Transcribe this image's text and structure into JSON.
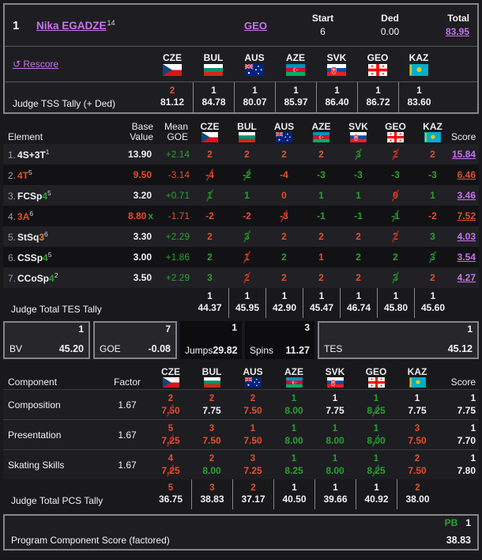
{
  "header": {
    "rank": "1",
    "name": "Nika EGADZE",
    "name_sup": "14",
    "nation": "GEO",
    "start_label": "Start",
    "start_value": "6",
    "ded_label": "Ded",
    "ded_value": "0.00",
    "total_label": "Total",
    "total_value": "83.95"
  },
  "rescore_label": "Rescore",
  "judges": [
    {
      "code": "CZE"
    },
    {
      "code": "BUL"
    },
    {
      "code": "AUS"
    },
    {
      "code": "AZE"
    },
    {
      "code": "SVK"
    },
    {
      "code": "GEO"
    },
    {
      "code": "KAZ"
    }
  ],
  "tss_tally": {
    "label": "Judge TSS Tally (+ Ded)",
    "cells": [
      {
        "rank": "2",
        "rc": "red",
        "value": "81.12"
      },
      {
        "rank": "1",
        "rc": "wht",
        "value": "84.78"
      },
      {
        "rank": "1",
        "rc": "wht",
        "value": "80.07"
      },
      {
        "rank": "1",
        "rc": "wht",
        "value": "85.97"
      },
      {
        "rank": "1",
        "rc": "wht",
        "value": "86.40"
      },
      {
        "rank": "1",
        "rc": "wht",
        "value": "86.72"
      },
      {
        "rank": "1",
        "rc": "wht",
        "value": "83.60"
      }
    ]
  },
  "elements": {
    "headers": {
      "element": "Element",
      "base1": "Base",
      "base2": "Value",
      "mean1": "Mean",
      "mean2": "GOE",
      "score": "Score"
    },
    "rows": [
      {
        "num": "1.",
        "name": "4S+3T",
        "nc": "wht",
        "lvl": "",
        "lc": "",
        "sup": "1",
        "base": "13.90",
        "bc": "wht",
        "x": "",
        "goe": "+2.14",
        "gc": "grn",
        "judges": [
          {
            "v": "2",
            "c": "red"
          },
          {
            "v": "2",
            "c": "red"
          },
          {
            "v": "2",
            "c": "red"
          },
          {
            "v": "2",
            "c": "red"
          },
          {
            "v": "3",
            "c": "grn cutg"
          },
          {
            "v": "2",
            "c": "red cutr"
          },
          {
            "v": "2",
            "c": "red"
          }
        ],
        "score": "15.84",
        "sc": "vio lnk"
      },
      {
        "num": "2.",
        "name": "4T",
        "nc": "red",
        "lvl": "",
        "lc": "",
        "sup": "5",
        "base": "9.50",
        "bc": "red",
        "x": "",
        "goe": "-3.14",
        "gc": "red",
        "judges": [
          {
            "v": "-4",
            "c": "red cutr"
          },
          {
            "v": "-2",
            "c": "grn cutg"
          },
          {
            "v": "-4",
            "c": "red"
          },
          {
            "v": "-3",
            "c": "grn"
          },
          {
            "v": "-3",
            "c": "grn"
          },
          {
            "v": "-3",
            "c": "grn"
          },
          {
            "v": "-3",
            "c": "grn"
          }
        ],
        "score": "6.46",
        "sc": "red lnk"
      },
      {
        "num": "3.",
        "name": "FCSp",
        "nc": "wht",
        "lvl": "4",
        "lc": "grn",
        "sup": "5",
        "base": "3.20",
        "bc": "wht",
        "x": "",
        "goe": "+0.71",
        "gc": "grn",
        "judges": [
          {
            "v": "1",
            "c": "grn cutg"
          },
          {
            "v": "1",
            "c": "grn"
          },
          {
            "v": "0",
            "c": "red"
          },
          {
            "v": "1",
            "c": "grn"
          },
          {
            "v": "1",
            "c": "grn"
          },
          {
            "v": "0",
            "c": "red cutr"
          },
          {
            "v": "1",
            "c": "grn"
          }
        ],
        "score": "3.46",
        "sc": "vio lnk"
      },
      {
        "num": "4.",
        "name": "3A",
        "nc": "red",
        "lvl": "",
        "lc": "",
        "sup": "6",
        "base": "8.80",
        "bc": "red",
        "x": "x",
        "goe": "-1.71",
        "gc": "red",
        "judges": [
          {
            "v": "-2",
            "c": "red"
          },
          {
            "v": "-2",
            "c": "red"
          },
          {
            "v": "-3",
            "c": "red cutr"
          },
          {
            "v": "-1",
            "c": "grn"
          },
          {
            "v": "-1",
            "c": "grn"
          },
          {
            "v": "-1",
            "c": "grn cutg"
          },
          {
            "v": "-2",
            "c": "red"
          }
        ],
        "score": "7.52",
        "sc": "red lnk"
      },
      {
        "num": "5.",
        "name": "StSq",
        "nc": "wht",
        "lvl": "3",
        "lc": "org",
        "sup": "6",
        "base": "3.30",
        "bc": "wht",
        "x": "",
        "goe": "+2.29",
        "gc": "grn",
        "judges": [
          {
            "v": "2",
            "c": "red"
          },
          {
            "v": "3",
            "c": "grn cutg"
          },
          {
            "v": "2",
            "c": "red"
          },
          {
            "v": "2",
            "c": "red"
          },
          {
            "v": "2",
            "c": "red"
          },
          {
            "v": "2",
            "c": "red cutr"
          },
          {
            "v": "3",
            "c": "grn"
          }
        ],
        "score": "4.03",
        "sc": "vio lnk"
      },
      {
        "num": "6.",
        "name": "CSSp",
        "nc": "wht",
        "lvl": "4",
        "lc": "grn",
        "sup": "5",
        "base": "3.00",
        "bc": "wht",
        "x": "",
        "goe": "+1.86",
        "gc": "grn",
        "judges": [
          {
            "v": "2",
            "c": "grn"
          },
          {
            "v": "1",
            "c": "red cutr"
          },
          {
            "v": "2",
            "c": "grn"
          },
          {
            "v": "1",
            "c": "red"
          },
          {
            "v": "2",
            "c": "grn"
          },
          {
            "v": "2",
            "c": "grn"
          },
          {
            "v": "3",
            "c": "grn cutg"
          }
        ],
        "score": "3.54",
        "sc": "vio lnk"
      },
      {
        "num": "7.",
        "name": "CCoSp",
        "nc": "wht",
        "lvl": "4",
        "lc": "grn",
        "sup": "2",
        "base": "3.50",
        "bc": "wht",
        "x": "",
        "goe": "+2.29",
        "gc": "grn",
        "judges": [
          {
            "v": "3",
            "c": "grn"
          },
          {
            "v": "2",
            "c": "red cutr"
          },
          {
            "v": "2",
            "c": "red"
          },
          {
            "v": "2",
            "c": "red"
          },
          {
            "v": "2",
            "c": "red"
          },
          {
            "v": "3",
            "c": "grn cutg"
          },
          {
            "v": "2",
            "c": "red"
          }
        ],
        "score": "4.27",
        "sc": "vio lnk"
      }
    ],
    "tes_tally": {
      "label": "Judge Total TES Tally",
      "cells": [
        {
          "rank": "1",
          "rc": "wht",
          "value": "44.37"
        },
        {
          "rank": "1",
          "rc": "wht",
          "value": "45.95"
        },
        {
          "rank": "1",
          "rc": "wht",
          "value": "42.90"
        },
        {
          "rank": "1",
          "rc": "wht",
          "value": "45.47"
        },
        {
          "rank": "1",
          "rc": "wht",
          "value": "46.74"
        },
        {
          "rank": "1",
          "rc": "wht",
          "value": "45.80"
        },
        {
          "rank": "1",
          "rc": "wht",
          "value": "45.60"
        }
      ]
    }
  },
  "summary": [
    {
      "rank": "1",
      "label": "BV",
      "value": "45.20"
    },
    {
      "rank": "7",
      "label": "GOE",
      "value": "-0.08"
    },
    {
      "rank": "1",
      "label": "Jumps",
      "value": "29.82"
    },
    {
      "rank": "3",
      "label": "Spins",
      "value": "11.27"
    },
    {
      "rank": "1",
      "label": "TES",
      "value": "45.12"
    }
  ],
  "components": {
    "headers": {
      "component": "Component",
      "factor": "Factor",
      "score": "Score"
    },
    "rows": [
      {
        "name": "Composition",
        "factor": "1.67",
        "judges": [
          {
            "rank": "2",
            "rc": "red",
            "v": "7.50",
            "c": "red cutr"
          },
          {
            "rank": "2",
            "rc": "red",
            "v": "7.75",
            "c": "wht"
          },
          {
            "rank": "2",
            "rc": "red",
            "v": "7.50",
            "c": "red"
          },
          {
            "rank": "1",
            "rc": "grn",
            "v": "8.00",
            "c": "grn"
          },
          {
            "rank": "1",
            "rc": "wht",
            "v": "7.75",
            "c": "wht"
          },
          {
            "rank": "1",
            "rc": "grn",
            "v": "8.25",
            "c": "grn cutg"
          },
          {
            "rank": "1",
            "rc": "wht",
            "v": "7.75",
            "c": "wht"
          }
        ],
        "score_rank": "1",
        "score": "7.75"
      },
      {
        "name": "Presentation",
        "factor": "1.67",
        "judges": [
          {
            "rank": "5",
            "rc": "red",
            "v": "7.25",
            "c": "red cutr"
          },
          {
            "rank": "3",
            "rc": "red",
            "v": "7.50",
            "c": "red"
          },
          {
            "rank": "1",
            "rc": "red",
            "v": "7.50",
            "c": "red"
          },
          {
            "rank": "1",
            "rc": "grn",
            "v": "8.00",
            "c": "grn"
          },
          {
            "rank": "1",
            "rc": "grn",
            "v": "8.00",
            "c": "grn"
          },
          {
            "rank": "1",
            "rc": "grn",
            "v": "8.00",
            "c": "grn cutg"
          },
          {
            "rank": "3",
            "rc": "red",
            "v": "7.50",
            "c": "red"
          }
        ],
        "score_rank": "1",
        "score": "7.70"
      },
      {
        "name": "Skating Skills",
        "factor": "1.67",
        "judges": [
          {
            "rank": "4",
            "rc": "red",
            "v": "7.25",
            "c": "red cutr"
          },
          {
            "rank": "2",
            "rc": "red",
            "v": "8.00",
            "c": "grn"
          },
          {
            "rank": "3",
            "rc": "red",
            "v": "7.25",
            "c": "red"
          },
          {
            "rank": "1",
            "rc": "grn",
            "v": "8.25",
            "c": "grn"
          },
          {
            "rank": "1",
            "rc": "grn",
            "v": "8.00",
            "c": "grn"
          },
          {
            "rank": "1",
            "rc": "grn",
            "v": "8.25",
            "c": "grn cutg"
          },
          {
            "rank": "2",
            "rc": "red",
            "v": "7.50",
            "c": "red"
          }
        ],
        "score_rank": "1",
        "score": "7.80"
      }
    ],
    "pcs_tally": {
      "label": "Judge Total PCS Tally",
      "cells": [
        {
          "rank": "5",
          "rc": "red",
          "value": "36.75"
        },
        {
          "rank": "3",
          "rc": "red",
          "value": "38.83"
        },
        {
          "rank": "2",
          "rc": "red",
          "value": "37.17"
        },
        {
          "rank": "1",
          "rc": "wht",
          "value": "40.50"
        },
        {
          "rank": "1",
          "rc": "wht",
          "value": "39.66"
        },
        {
          "rank": "1",
          "rc": "wht",
          "value": "40.92"
        },
        {
          "rank": "2",
          "rc": "red",
          "value": "38.00"
        }
      ]
    }
  },
  "footer": {
    "label": "Program Component Score (factored)",
    "pb": "PB",
    "rank": "1",
    "value": "38.83"
  },
  "colors": {
    "accent_link": "#c973ef",
    "positive": "#2ba12e",
    "negative": "#e2502d",
    "level_orange": "#e6831f"
  }
}
